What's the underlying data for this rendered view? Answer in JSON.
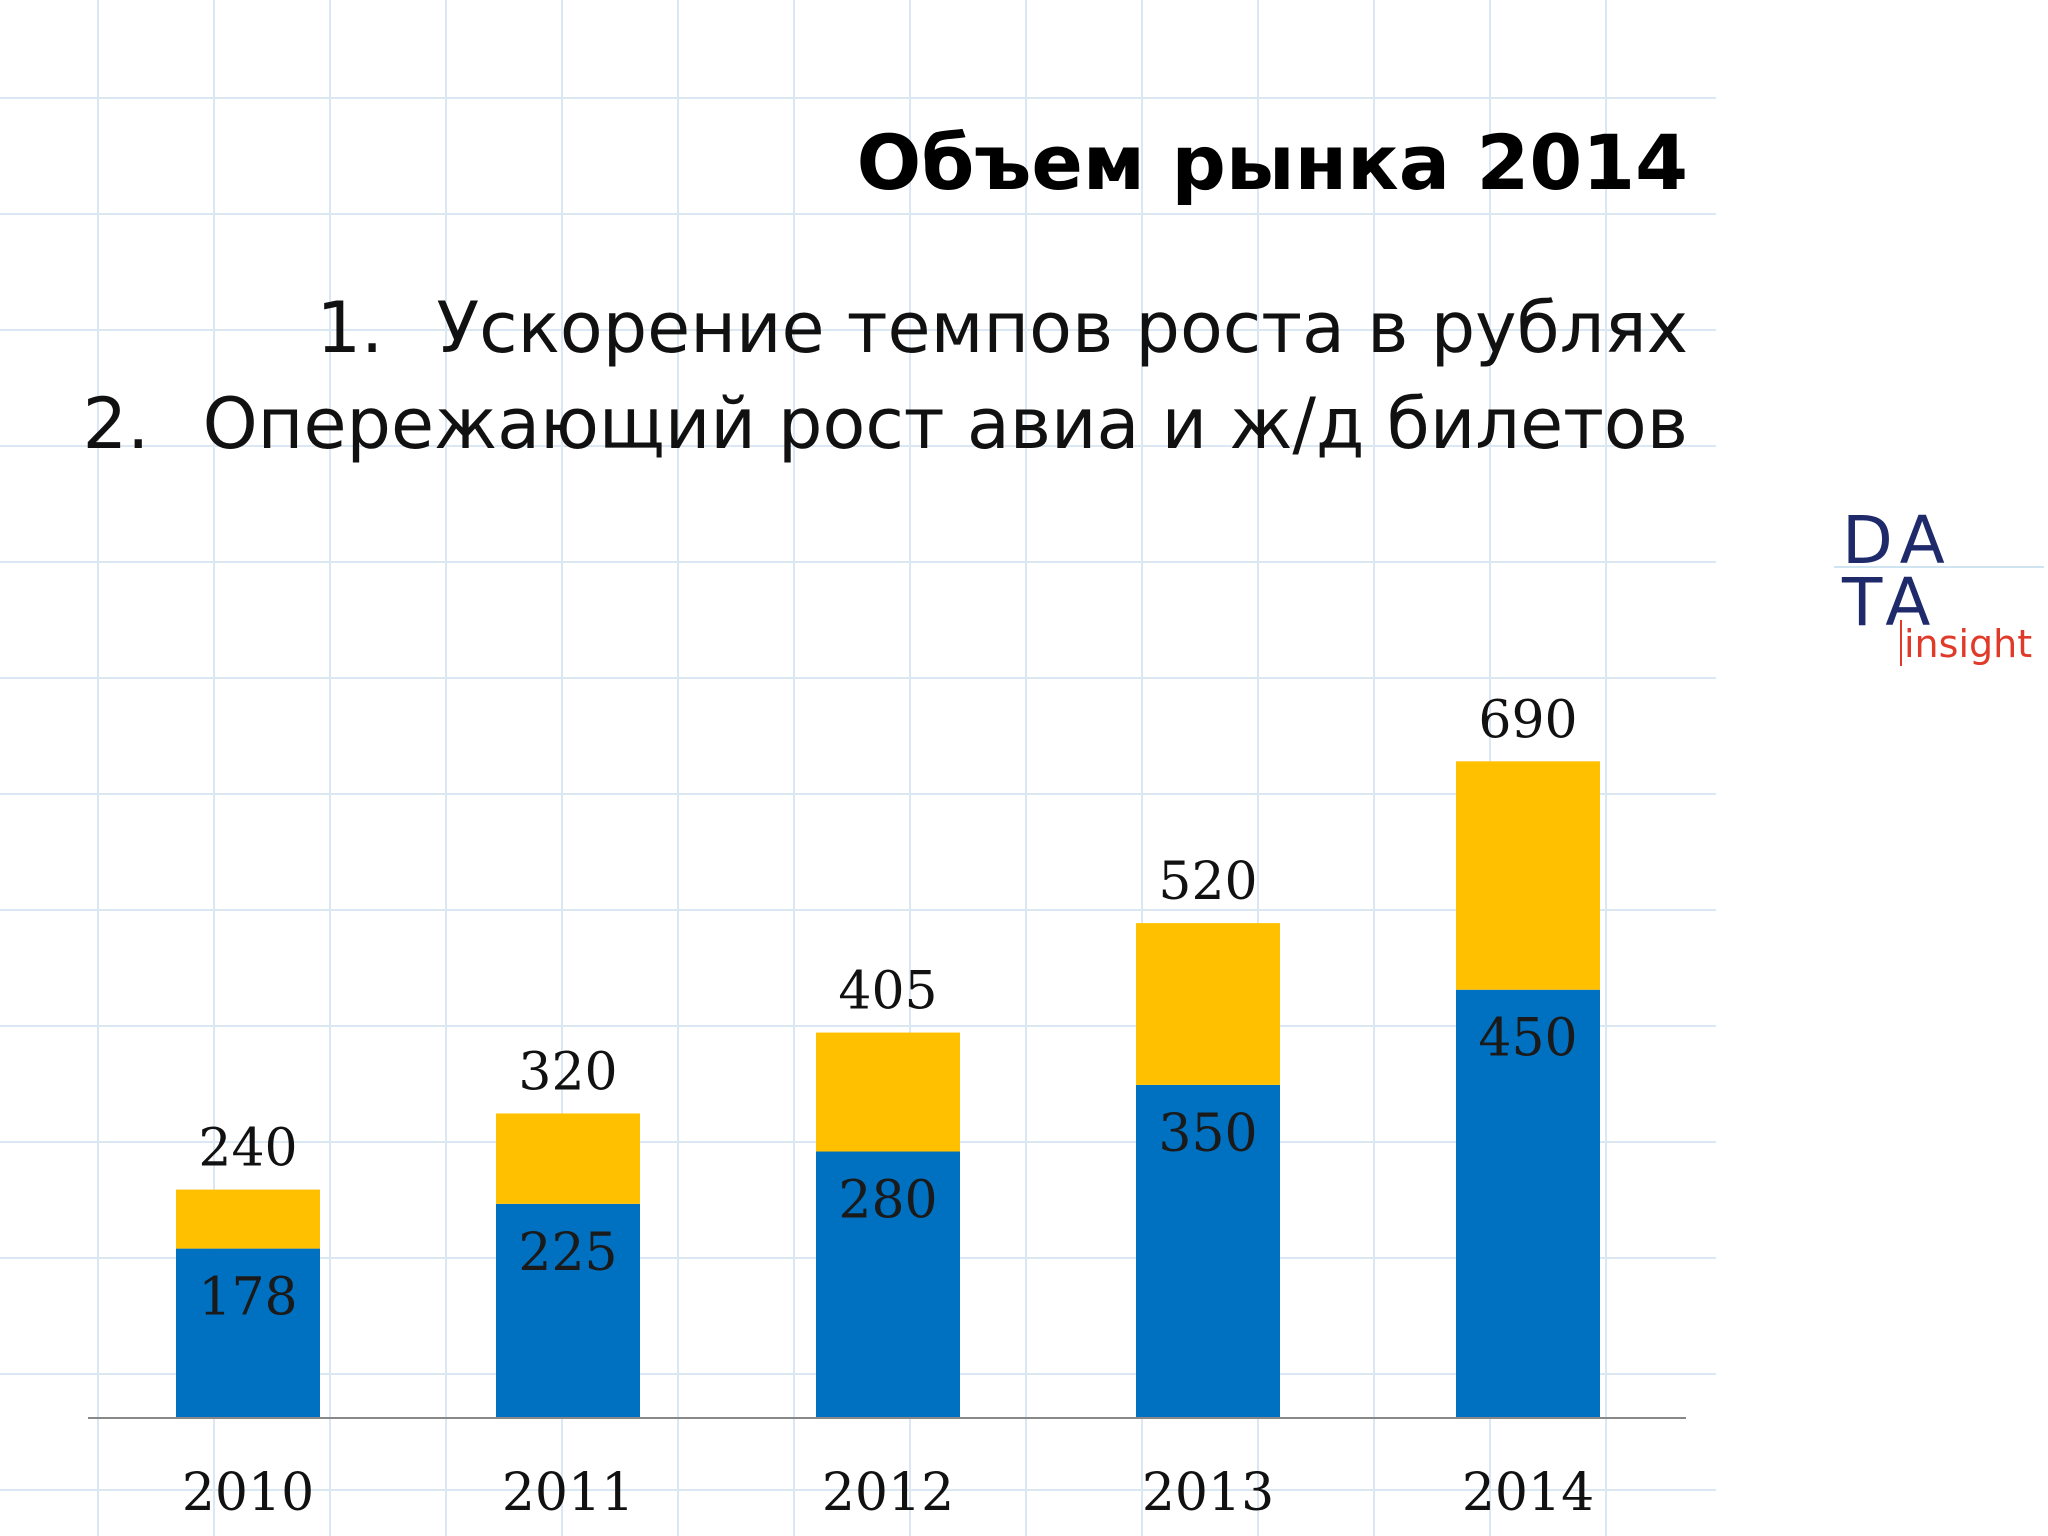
{
  "slide": {
    "title": "Объем рынка 2014",
    "points": [
      {
        "num": "1.",
        "text": "Ускорение темпов роста в рублях"
      },
      {
        "num": "2.",
        "text": "Опережающий рост авиа и ж/д билетов"
      }
    ]
  },
  "logo": {
    "line1": "DA",
    "line2": "TA",
    "line3": "insight"
  },
  "chart_data": {
    "type": "bar",
    "stacked": true,
    "categories": [
      "2010",
      "2011",
      "2012",
      "2013",
      "2014"
    ],
    "series": [
      {
        "values": [
          178,
          225,
          280,
          350,
          450
        ],
        "color": "#0070c0"
      },
      {
        "values": [
          62,
          95,
          125,
          170,
          240
        ],
        "color": "#ffc000"
      }
    ],
    "totals": [
      240,
      320,
      405,
      520,
      690
    ],
    "bottom_labels": [
      178,
      225,
      280,
      350,
      450
    ],
    "ylim": [
      0,
      800
    ],
    "grid": true
  }
}
